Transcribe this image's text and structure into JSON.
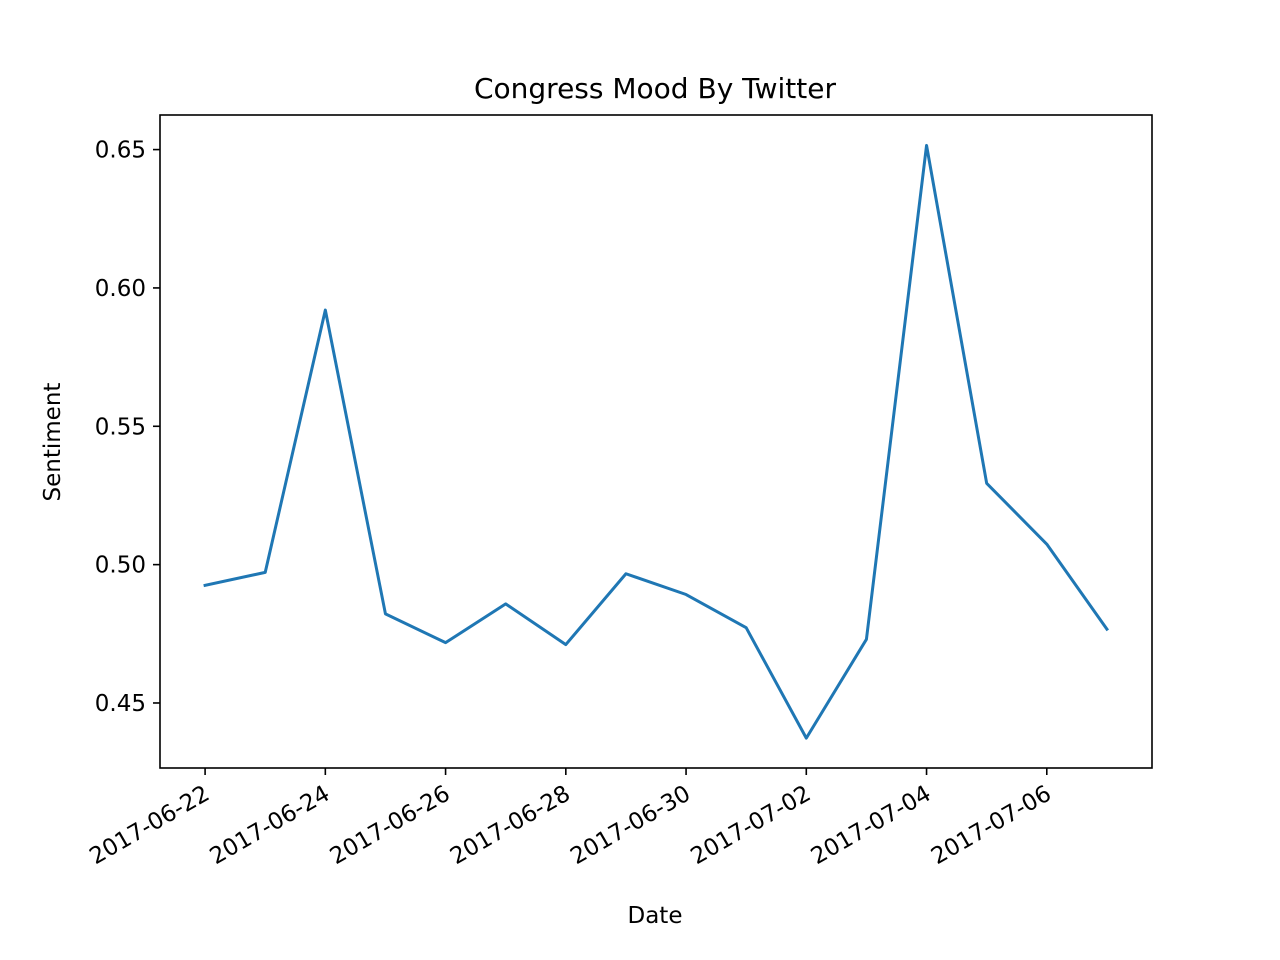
{
  "chart_data": {
    "type": "line",
    "title": "Congress Mood By Twitter",
    "xlabel": "Date",
    "ylabel": "Sentiment",
    "x": [
      "2017-06-22",
      "2017-06-23",
      "2017-06-24",
      "2017-06-25",
      "2017-06-26",
      "2017-06-27",
      "2017-06-28",
      "2017-06-29",
      "2017-06-30",
      "2017-07-01",
      "2017-07-02",
      "2017-07-03",
      "2017-07-04",
      "2017-07-05",
      "2017-07-06",
      "2017-07-07"
    ],
    "series": [
      {
        "color": "#1f77b4",
        "values": [
          0.4925,
          0.4972,
          0.592,
          0.4822,
          0.4718,
          0.4858,
          0.4711,
          0.4967,
          0.4892,
          0.4772,
          0.4373,
          0.473,
          0.6515,
          0.5294,
          0.5074,
          0.4767
        ]
      }
    ],
    "xticks": [
      "2017-06-22",
      "2017-06-24",
      "2017-06-26",
      "2017-06-28",
      "2017-06-30",
      "2017-07-02",
      "2017-07-04",
      "2017-07-06"
    ],
    "yticks": [
      "0.45",
      "0.50",
      "0.55",
      "0.60",
      "0.65"
    ],
    "ylim": [
      0.4265,
      0.6625
    ],
    "xlim": [
      "2017-06-21T06:00",
      "2017-07-07T18:00"
    ],
    "grid": false,
    "legend": "none"
  }
}
